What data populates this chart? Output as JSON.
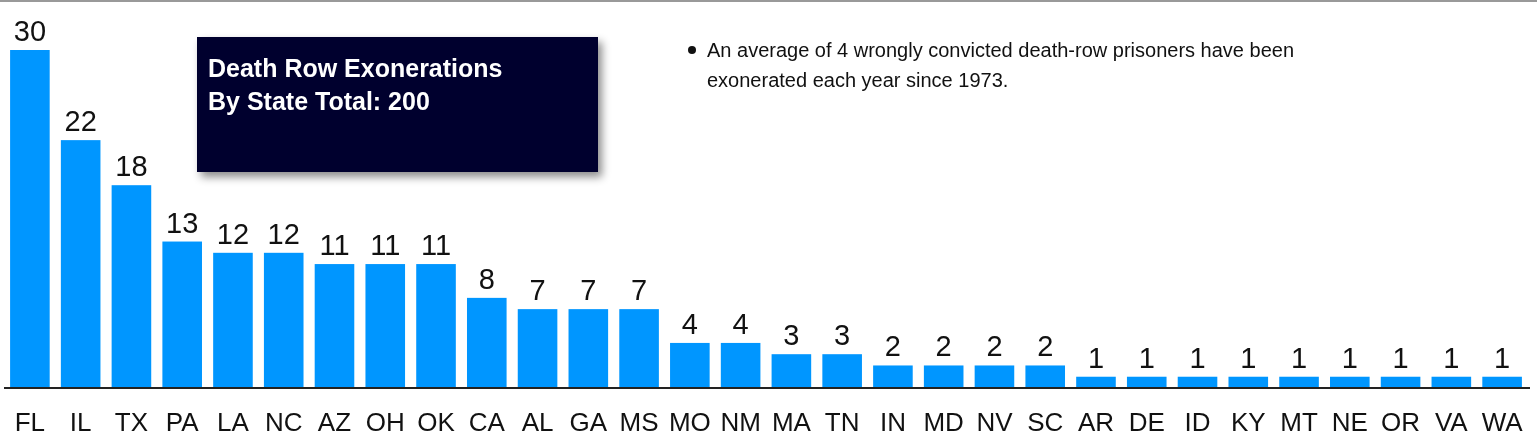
{
  "chart_data": {
    "type": "bar",
    "title": "Death Row Exonerations By State Total: 200",
    "annotations": [
      "An average of 4 wrongly convicted death-row prisoners have been exonerated each year since 1973."
    ],
    "categories": [
      "FL",
      "IL",
      "TX",
      "PA",
      "LA",
      "NC",
      "AZ",
      "OH",
      "OK",
      "CA",
      "AL",
      "GA",
      "MS",
      "MO",
      "NM",
      "MA",
      "TN",
      "IN",
      "MD",
      "NV",
      "SC",
      "AR",
      "DE",
      "ID",
      "KY",
      "MT",
      "NE",
      "OR",
      "VA",
      "WA"
    ],
    "values": [
      30,
      22,
      18,
      13,
      12,
      12,
      11,
      11,
      11,
      8,
      7,
      7,
      7,
      4,
      4,
      3,
      3,
      2,
      2,
      2,
      2,
      1,
      1,
      1,
      1,
      1,
      1,
      1,
      1,
      1
    ],
    "color": "#0096ff",
    "data_labels": true
  }
}
